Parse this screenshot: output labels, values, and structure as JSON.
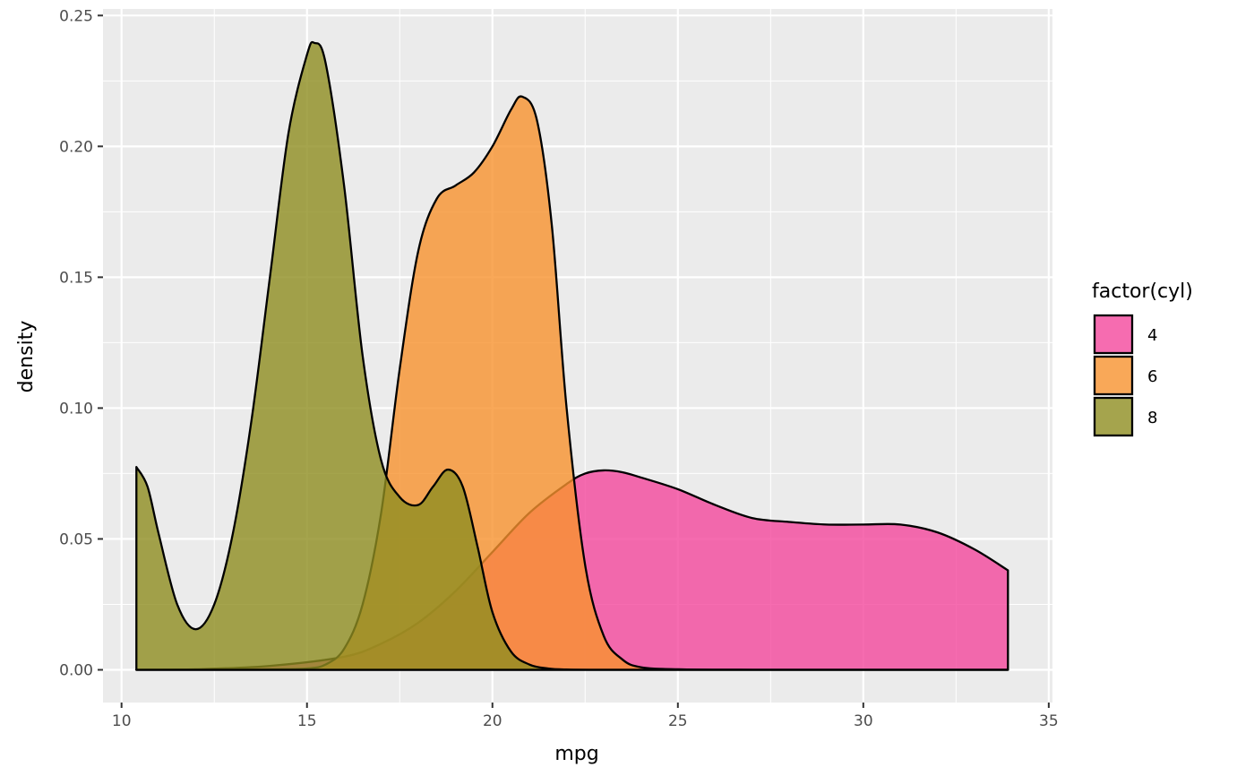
{
  "chart_data": {
    "type": "area",
    "subtype": "density",
    "xlabel": "mpg",
    "ylabel": "density",
    "xlim": [
      9.5,
      35.1
    ],
    "ylim": [
      -0.0125,
      0.2525
    ],
    "x_ticks": [
      10,
      15,
      20,
      25,
      30,
      35
    ],
    "y_ticks": [
      0.0,
      0.05,
      0.1,
      0.15,
      0.2,
      0.25
    ],
    "x_tick_labels": [
      "10",
      "15",
      "20",
      "25",
      "30",
      "35"
    ],
    "y_tick_labels": [
      "0.00",
      "0.05",
      "0.10",
      "0.15",
      "0.20",
      "0.25"
    ],
    "grid": true,
    "legend": {
      "title": "factor(cyl)",
      "position": "right",
      "entries": [
        "4",
        "6",
        "8"
      ]
    },
    "series": [
      {
        "name": "4",
        "color": "#F4479C",
        "x": [
          10.4,
          12,
          14,
          16,
          17,
          18,
          19,
          20,
          21,
          22,
          22.5,
          23,
          23.5,
          24,
          25,
          26,
          27,
          28,
          29,
          30,
          31,
          32,
          33,
          33.9
        ],
        "y": [
          0.0,
          0.0002,
          0.0015,
          0.005,
          0.01,
          0.018,
          0.03,
          0.045,
          0.06,
          0.071,
          0.075,
          0.0762,
          0.0755,
          0.0735,
          0.069,
          0.063,
          0.058,
          0.0565,
          0.0555,
          0.0555,
          0.0555,
          0.0525,
          0.046,
          0.038
        ]
      },
      {
        "name": "6",
        "color": "#F8922E",
        "x": [
          10.4,
          14,
          15,
          15.5,
          16,
          16.5,
          17,
          17.5,
          18,
          18.5,
          19,
          19.5,
          20,
          20.5,
          20.8,
          21.2,
          21.6,
          22,
          22.5,
          23,
          23.5,
          24,
          25,
          27,
          30,
          33.9
        ],
        "y": [
          0.0,
          0.0002,
          0.0005,
          0.002,
          0.008,
          0.025,
          0.06,
          0.115,
          0.16,
          0.18,
          0.185,
          0.19,
          0.2,
          0.214,
          0.219,
          0.21,
          0.17,
          0.1,
          0.04,
          0.013,
          0.004,
          0.001,
          0.0002,
          0.0,
          0.0,
          0.0
        ]
      },
      {
        "name": "8",
        "color": "#8E8D20",
        "x": [
          10.4,
          10.7,
          11,
          11.5,
          12,
          12.5,
          13,
          13.5,
          14,
          14.5,
          15,
          15.2,
          15.5,
          16,
          16.5,
          17,
          17.5,
          18,
          18.4,
          18.8,
          19.2,
          19.6,
          20,
          20.5,
          21,
          21.5,
          22,
          23,
          25,
          33.9
        ],
        "y": [
          0.0775,
          0.07,
          0.052,
          0.025,
          0.0155,
          0.025,
          0.052,
          0.095,
          0.15,
          0.205,
          0.235,
          0.2395,
          0.232,
          0.185,
          0.12,
          0.08,
          0.066,
          0.063,
          0.07,
          0.0765,
          0.07,
          0.047,
          0.022,
          0.007,
          0.002,
          0.0005,
          0.0001,
          0.0,
          0.0,
          0.0
        ]
      }
    ],
    "fill_opacity": 0.8
  }
}
